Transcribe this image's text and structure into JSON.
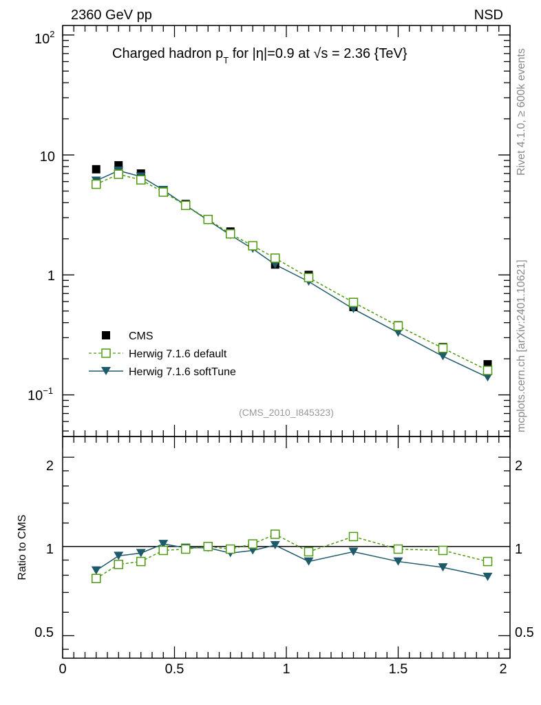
{
  "header": {
    "left": "2360 GeV pp",
    "right": "NSD"
  },
  "side_text": {
    "rivet": "Rivet 4.1.0, ≥ 600k events",
    "mcplots": "mcplots.cern.ch [arXiv:2401.10621]"
  },
  "main_plot": {
    "title_part1": "Charged hadron p",
    "title_sub": "T",
    "title_part2": " for |η|=0.9 at √s = 2.36 {TeV}",
    "analysis_id": "(CMS_2010_I845323)",
    "y_tick_labels": {
      "t100": "10",
      "t100_exp": "2",
      "t10": "10",
      "t1": "1",
      "t01": "10",
      "t01_exp": "−1"
    }
  },
  "ratio_plot": {
    "ylabel": "Ratio to CMS",
    "y_tick_labels": [
      "0.5",
      "1",
      "2"
    ]
  },
  "x_tick_labels": [
    "0",
    "0.5",
    "1",
    "1.5",
    "2"
  ],
  "legend": {
    "cms": "CMS",
    "default": "Herwig 7.1.6 default",
    "softtune": "Herwig 7.1.6 softTune"
  },
  "colors": {
    "cms": "#000000",
    "default": "#4d9a0e",
    "softtune": "#1d5a6a"
  },
  "chart_data": {
    "type": "scatter",
    "title": "Charged hadron pT for |η|=0.9 at √s = 2.36 {TeV}",
    "xlabel": "",
    "ylabel": "",
    "xlim": [
      0,
      2
    ],
    "ylim": [
      0.045,
      120
    ],
    "yscale": "log",
    "ratio_ylim": [
      0.42,
      2.35
    ],
    "x": [
      0.15,
      0.25,
      0.35,
      0.45,
      0.55,
      0.65,
      0.75,
      0.85,
      0.95,
      1.1,
      1.3,
      1.5,
      1.7,
      1.9
    ],
    "series": [
      {
        "name": "CMS",
        "marker": "filled-square",
        "values": [
          7.6,
          8.2,
          7.0,
          5.1,
          3.9,
          2.9,
          2.3,
          1.75,
          1.22,
          1.0,
          0.54,
          0.38,
          0.25,
          0.18
        ]
      },
      {
        "name": "Herwig 7.1.6 default",
        "marker": "open-square",
        "line": "dashed",
        "values": [
          5.7,
          6.9,
          6.2,
          4.9,
          3.8,
          2.9,
          2.2,
          1.75,
          1.38,
          0.95,
          0.59,
          0.375,
          0.245,
          0.16
        ]
      },
      {
        "name": "Herwig 7.1.6 softTune",
        "marker": "filled-triangle-down",
        "line": "solid",
        "values": [
          6.1,
          7.4,
          6.6,
          5.1,
          3.8,
          2.85,
          2.15,
          1.65,
          1.22,
          0.88,
          0.52,
          0.33,
          0.21,
          0.14
        ]
      }
    ],
    "ratio_series": [
      {
        "name": "Herwig 7.1.6 default",
        "values": [
          0.78,
          0.87,
          0.89,
          0.97,
          0.98,
          1.0,
          0.98,
          1.02,
          1.1,
          0.96,
          1.08,
          0.98,
          0.97,
          0.89
        ]
      },
      {
        "name": "Herwig 7.1.6 softTune",
        "values": [
          0.83,
          0.93,
          0.95,
          1.02,
          0.99,
          0.99,
          0.95,
          0.97,
          1.01,
          0.89,
          0.96,
          0.89,
          0.85,
          0.79
        ]
      }
    ],
    "legend_position": "bottom-left"
  }
}
